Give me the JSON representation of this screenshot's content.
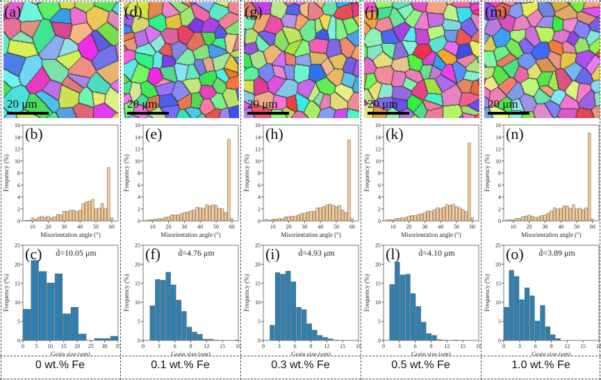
{
  "panels": [
    {
      "map_label": "(a)",
      "mis_label": "(b)",
      "grain_label": "(c)",
      "scale": "20 μm",
      "composition": "0 wt.% Fe"
    },
    {
      "map_label": "(d)",
      "mis_label": "(e)",
      "grain_label": "(f)",
      "scale": "20 μm",
      "composition": "0.1 wt.% Fe"
    },
    {
      "map_label": "(g)",
      "mis_label": "(h)",
      "grain_label": "(i)",
      "scale": "20 μm",
      "composition": "0.3 wt.% Fe"
    },
    {
      "map_label": "(j)",
      "mis_label": "(k)",
      "grain_label": "(l)",
      "scale": "20 μm",
      "composition": "0.5 wt.% Fe"
    },
    {
      "map_label": "(m)",
      "mis_label": "(n)",
      "grain_label": "(o)",
      "scale": "20 μm",
      "composition": "1.0 wt.% Fe"
    }
  ],
  "colors": {
    "misorientation_bar": "#f9c98f",
    "grain_bar": "#2f7fb0",
    "bar_edge": "#555555"
  },
  "chart_data": [
    {
      "type": "bar",
      "panel": "(b)",
      "xlabel": "Misorientation angle (°)",
      "ylabel": "Frequency (%)",
      "xlim": [
        4,
        64
      ],
      "ylim": [
        0,
        16
      ],
      "xticks": [
        10,
        20,
        30,
        40,
        50,
        60
      ],
      "yticks": [
        0,
        2,
        4,
        6,
        8,
        10,
        12,
        14,
        16
      ],
      "bin_start": 5,
      "bin_width": 2,
      "values": [
        0.1,
        0.1,
        0.5,
        0.3,
        0.6,
        0.8,
        0.6,
        0.8,
        0.5,
        0.7,
        1.1,
        1.0,
        1.6,
        1.6,
        1.8,
        1.8,
        1.6,
        1.8,
        2.9,
        3.2,
        3.3,
        3.6,
        2.0,
        2.1,
        2.9,
        2.1,
        8.9,
        0.5
      ]
    },
    {
      "type": "bar",
      "panel": "(e)",
      "xlabel": "Misorientation angle (°)",
      "ylabel": "Frequency (%)",
      "xlim": [
        4,
        64
      ],
      "ylim": [
        0,
        16
      ],
      "xticks": [
        10,
        20,
        30,
        40,
        50,
        60
      ],
      "yticks": [
        0,
        2,
        4,
        6,
        8,
        10,
        12,
        14,
        16
      ],
      "bin_start": 5,
      "bin_width": 2,
      "values": [
        0.1,
        0.2,
        0.2,
        0.3,
        0.4,
        0.4,
        0.6,
        0.7,
        1.0,
        1.0,
        1.0,
        1.2,
        1.4,
        1.5,
        1.7,
        1.8,
        2.3,
        2.2,
        2.1,
        2.7,
        2.5,
        2.7,
        2.6,
        2.1,
        2.0,
        1.4,
        13.6,
        0.4
      ]
    },
    {
      "type": "bar",
      "panel": "(h)",
      "xlabel": "Misorientation angle (°)",
      "ylabel": "Frequency (%)",
      "xlim": [
        4,
        64
      ],
      "ylim": [
        0,
        16
      ],
      "xticks": [
        10,
        20,
        30,
        40,
        50,
        60
      ],
      "yticks": [
        0,
        2,
        4,
        6,
        8,
        10,
        12,
        14,
        16
      ],
      "bin_start": 5,
      "bin_width": 2,
      "values": [
        0.3,
        0.1,
        0.3,
        0.3,
        0.4,
        0.4,
        0.7,
        0.7,
        0.8,
        0.8,
        1.0,
        1.2,
        1.3,
        1.5,
        1.6,
        1.6,
        2.2,
        2.2,
        2.4,
        2.7,
        2.8,
        2.6,
        2.4,
        2.6,
        1.8,
        1.4,
        13.5,
        0.4
      ]
    },
    {
      "type": "bar",
      "panel": "(k)",
      "xlabel": "Misorientation angle (°)",
      "ylabel": "Frequency (%)",
      "xlim": [
        4,
        64
      ],
      "ylim": [
        0,
        16
      ],
      "xticks": [
        10,
        20,
        30,
        40,
        50,
        60
      ],
      "yticks": [
        0,
        2,
        4,
        6,
        8,
        10,
        12,
        14,
        16
      ],
      "bin_start": 5,
      "bin_width": 2,
      "values": [
        0.2,
        0.2,
        0.2,
        0.4,
        0.4,
        0.5,
        0.6,
        0.8,
        0.9,
        0.9,
        1.1,
        1.2,
        1.4,
        1.7,
        1.6,
        1.9,
        2.2,
        2.1,
        2.3,
        2.7,
        2.6,
        2.8,
        2.4,
        2.2,
        1.9,
        1.6,
        13.0,
        0.5
      ]
    },
    {
      "type": "bar",
      "panel": "(n)",
      "xlabel": "Misorientation angle (°)",
      "ylabel": "Frequency (%)",
      "xlim": [
        4,
        64
      ],
      "ylim": [
        0,
        16
      ],
      "xticks": [
        10,
        20,
        30,
        40,
        50,
        60
      ],
      "yticks": [
        0,
        2,
        4,
        6,
        8,
        10,
        12,
        14,
        16
      ],
      "bin_start": 5,
      "bin_width": 2,
      "values": [
        0.2,
        0.2,
        0.2,
        0.4,
        0.4,
        0.7,
        0.8,
        1.0,
        0.8,
        0.6,
        0.7,
        0.9,
        1.0,
        1.3,
        1.7,
        2.2,
        2.0,
        2.1,
        2.5,
        2.5,
        2.1,
        2.7,
        2.0,
        2.1,
        1.9,
        2.2,
        14.7,
        0.3
      ]
    },
    {
      "type": "bar",
      "panel": "(c)",
      "annotation": "d̄=10.05 μm",
      "xlabel": "Grain size (μm)",
      "ylabel": "Frequency (%)",
      "xlim": [
        0,
        35
      ],
      "ylim": [
        0,
        25
      ],
      "xticks": [
        0,
        5,
        10,
        15,
        20,
        25,
        30,
        35
      ],
      "yticks": [
        0,
        5,
        10,
        15,
        20,
        25
      ],
      "bin_start": 0,
      "bin_width": 2.92,
      "values": [
        8.2,
        21.0,
        18.1,
        15.1,
        17.5,
        7.0,
        8.7,
        1.7,
        0,
        0.5,
        0.5,
        1.1
      ]
    },
    {
      "type": "bar",
      "panel": "(f)",
      "annotation": "d̄=4.76 μm",
      "xlabel": "Grain size (μm)",
      "ylabel": "Frequency (%)",
      "xlim": [
        0,
        18
      ],
      "ylim": [
        0,
        25
      ],
      "xticks": [
        0,
        3,
        6,
        9,
        12,
        15,
        18
      ],
      "yticks": [
        0,
        5,
        10,
        15,
        20,
        25
      ],
      "bin_start": 1.25,
      "bin_width": 1,
      "values": [
        9.1,
        16.0,
        15.8,
        17.9,
        14.6,
        10.6,
        7.6,
        3.5,
        2.2,
        1.6,
        0.3,
        0.3,
        0.1,
        0,
        0,
        0,
        0.1
      ]
    },
    {
      "type": "bar",
      "panel": "(i)",
      "annotation": "d̄=4.93 μm",
      "xlabel": "Grain size (μm)",
      "ylabel": "Frequency (%)",
      "xlim": [
        0,
        18
      ],
      "ylim": [
        0,
        25
      ],
      "xticks": [
        0,
        3,
        6,
        9,
        12,
        15,
        18
      ],
      "yticks": [
        0,
        5,
        10,
        15,
        20,
        25
      ],
      "bin_start": 1.2,
      "bin_width": 1,
      "values": [
        4.0,
        17.8,
        17.4,
        18.2,
        15.4,
        8.7,
        8.1,
        4.4,
        2.7,
        1.3,
        0.8,
        0.4,
        0.1,
        0.05
      ]
    },
    {
      "type": "bar",
      "panel": "(l)",
      "annotation": "d̄=4.10 μm",
      "xlabel": "Grain size (μm)",
      "ylabel": "Frequency (%)",
      "xlim": [
        0,
        18
      ],
      "ylim": [
        0,
        25
      ],
      "xticks": [
        0,
        3,
        6,
        9,
        12,
        15,
        18
      ],
      "yticks": [
        0,
        5,
        10,
        15,
        20,
        25
      ],
      "bin_start": 1.1,
      "bin_width": 1,
      "values": [
        14.7,
        20.6,
        17.2,
        17.4,
        12.3,
        8.9,
        4.8,
        1.8,
        1.3,
        0.2,
        0.1,
        0,
        0.1
      ]
    },
    {
      "type": "bar",
      "panel": "(o)",
      "annotation": "d̄=3.89 μm",
      "xlabel": "Grain size (μm)",
      "ylabel": "Frequency (%)",
      "xlim": [
        0,
        18
      ],
      "ylim": [
        0,
        25
      ],
      "xticks": [
        0,
        3,
        6,
        9,
        12,
        15,
        18
      ],
      "yticks": [
        0,
        5,
        10,
        15,
        20,
        25
      ],
      "bin_start": 0,
      "bin_width": 0.98,
      "values": [
        8.7,
        18.4,
        16.8,
        10.7,
        13.8,
        11.7,
        5.1,
        9.2,
        3.6,
        1.5,
        0.5
      ]
    }
  ]
}
